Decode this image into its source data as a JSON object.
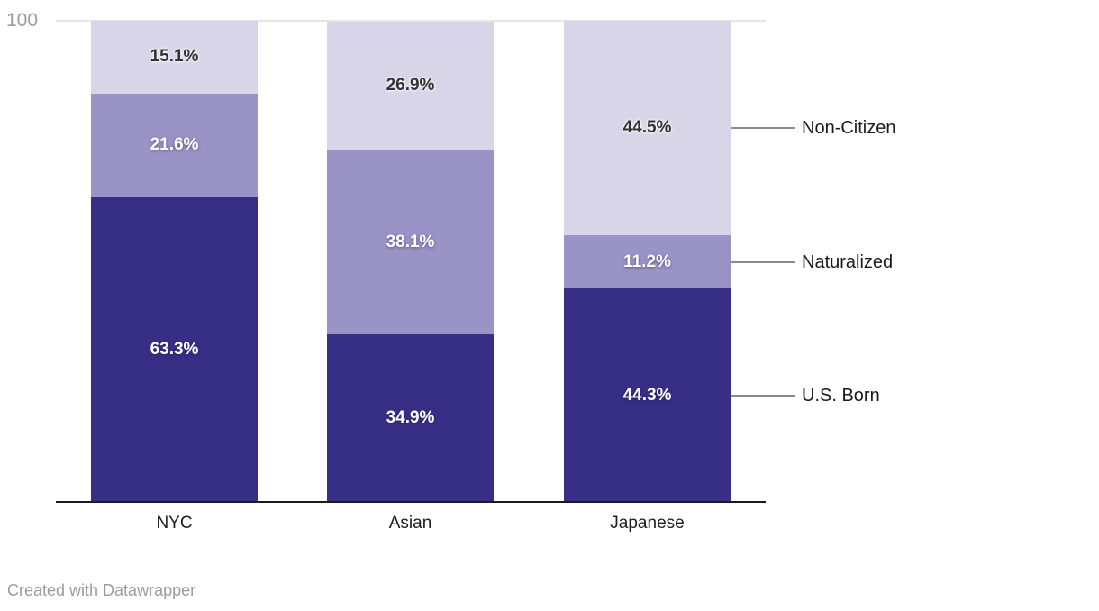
{
  "chart_data": {
    "type": "bar",
    "variant": "stacked-column-100",
    "categories": [
      "NYC",
      "Asian",
      "Japanese"
    ],
    "series": [
      {
        "name": "U.S. Born",
        "values": [
          63.3,
          34.9,
          44.3
        ],
        "labels": [
          "63.3%",
          "34.9%",
          "44.3%"
        ],
        "color": "#372f85",
        "text_style": "light"
      },
      {
        "name": "Naturalized",
        "values": [
          21.6,
          38.1,
          11.2
        ],
        "labels": [
          "21.6%",
          "38.1%",
          "11.2%"
        ],
        "color": "#9a94c6",
        "text_style": "light"
      },
      {
        "name": "Non-Citizen",
        "values": [
          15.1,
          26.9,
          44.5
        ],
        "labels": [
          "15.1%",
          "26.9%",
          "44.5%"
        ],
        "color": "#d8d5e9",
        "text_style": "dark"
      }
    ],
    "stack_order": "bottom-to-top",
    "ylim": [
      0,
      100
    ],
    "y_axis": {
      "top_tick_label": "100"
    },
    "grid": "top-line-only",
    "legend": {
      "position": "right",
      "entries": [
        "Non-Citizen",
        "Naturalized",
        "U.S. Born"
      ]
    }
  },
  "colors": {
    "background": "#ffffff",
    "axis_line": "#1a1a1a",
    "gridline": "#e6e6e6",
    "tick_label": "#9c9c9c",
    "category_label": "#1d1d1d",
    "legend_label": "#1a1a1a",
    "legend_line": "#8a8a8a",
    "label_on_dark": "#ffffff",
    "label_on_light": "#333333"
  },
  "footer": {
    "attribution": "Created with Datawrapper"
  }
}
